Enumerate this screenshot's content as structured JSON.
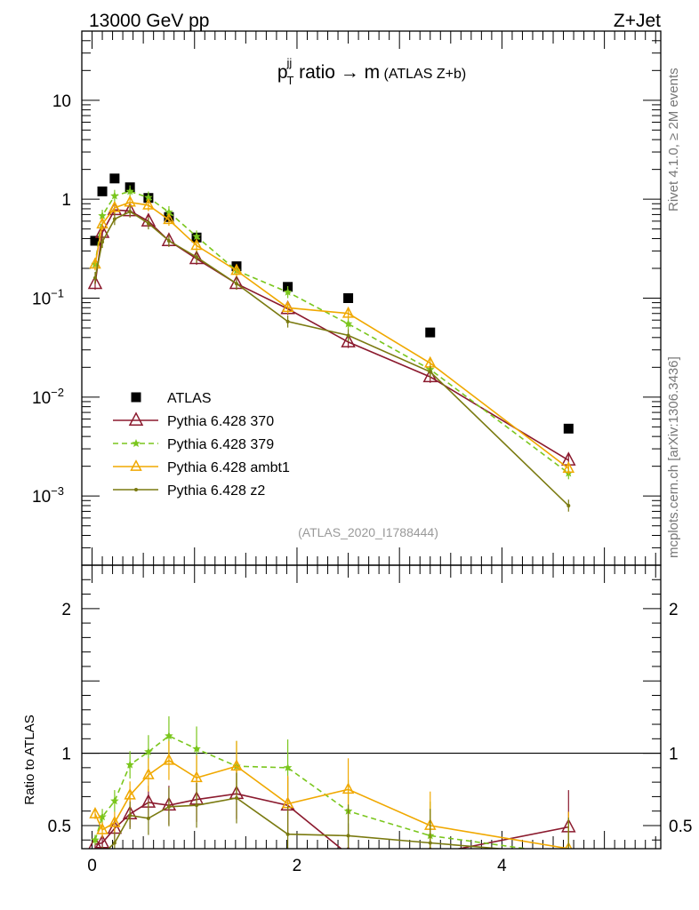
{
  "header": {
    "left": "13000 GeV pp",
    "right": "Z+Jet"
  },
  "plot_title": {
    "main": "p",
    "sup": "jj",
    "sub": "T",
    "rest": " ratio → m",
    "small": " (ATLAS Z+b)"
  },
  "side_labels": {
    "rivet": "Rivet 4.1.0, ≥ 2M events",
    "mcplots": "mcplots.cern.ch [arXiv:1306.3436]"
  },
  "analysis_id": "(ATLAS_2020_I1788444)",
  "ratio_ylabel": "Ratio to ATLAS",
  "main_axis": {
    "ytick_labels": [
      {
        "v": 10,
        "t": "10"
      },
      {
        "v": 1,
        "t": "1"
      },
      {
        "v": 0.1,
        "b": "10",
        "e": "−1"
      },
      {
        "v": 0.01,
        "b": "10",
        "e": "−2"
      },
      {
        "v": 0.001,
        "b": "10",
        "e": "−3"
      }
    ]
  },
  "ratio_axis": {
    "ytick_labels": [
      {
        "v": 2,
        "t": "2"
      },
      {
        "v": 1,
        "t": "1"
      },
      {
        "v": 0.5,
        "t": "0.5"
      }
    ]
  },
  "xaxis": {
    "tick_labels": [
      {
        "v": 0,
        "t": "0"
      },
      {
        "v": 2,
        "t": "2"
      },
      {
        "v": 4,
        "t": "4"
      }
    ]
  },
  "chart_data": [
    {
      "type": "scatter",
      "name": "main",
      "title": "p_T^jj ratio → m (ATLAS Z+b)",
      "xlim": [
        -0.1,
        5.55
      ],
      "ylim": [
        0.0002,
        50
      ],
      "yscale": "log",
      "legend_position": "lower-left",
      "series": [
        {
          "name": "ATLAS",
          "label": "ATLAS",
          "color": "#000000",
          "marker": "square",
          "x": [
            0.03,
            0.1,
            0.22,
            0.37,
            0.55,
            0.75,
            1.02,
            1.41,
            1.91,
            2.5,
            3.3,
            4.65
          ],
          "y": [
            0.38,
            1.2,
            1.62,
            1.32,
            1.03,
            0.66,
            0.41,
            0.21,
            0.13,
            0.1,
            0.045,
            0.0048
          ]
        },
        {
          "name": "Pythia 6.428 370",
          "label": "Pythia 6.428 370",
          "color": "#8b1a2e",
          "marker": "triangle-open",
          "dash": "",
          "x": [
            0.03,
            0.1,
            0.22,
            0.37,
            0.55,
            0.75,
            1.02,
            1.41,
            1.91,
            2.5,
            3.3,
            4.65
          ],
          "y": [
            0.14,
            0.46,
            0.78,
            0.76,
            0.6,
            0.38,
            0.25,
            0.14,
            0.078,
            0.036,
            0.016,
            0.0023
          ]
        },
        {
          "name": "Pythia 6.428 379",
          "label": "Pythia 6.428 379",
          "color": "#7ac61d",
          "marker": "star",
          "dash": "6,4",
          "x": [
            0.03,
            0.1,
            0.22,
            0.37,
            0.55,
            0.75,
            1.02,
            1.41,
            1.91,
            2.5,
            3.3,
            4.65
          ],
          "y": [
            0.22,
            0.68,
            1.08,
            1.2,
            1.04,
            0.74,
            0.42,
            0.19,
            0.115,
            0.055,
            0.019,
            0.0017
          ]
        },
        {
          "name": "Pythia 6.428 ambt1",
          "label": "Pythia 6.428 ambt1",
          "color": "#f0a800",
          "marker": "triangle-open-small",
          "dash": "",
          "x": [
            0.03,
            0.1,
            0.22,
            0.37,
            0.55,
            0.75,
            1.02,
            1.41,
            1.91,
            2.5,
            3.3,
            4.65
          ],
          "y": [
            0.22,
            0.56,
            0.82,
            0.93,
            0.87,
            0.62,
            0.34,
            0.19,
            0.08,
            0.07,
            0.022,
            0.0019
          ]
        },
        {
          "name": "Pythia 6.428 z2",
          "label": "Pythia 6.428 z2",
          "color": "#7a7a10",
          "marker": "dot",
          "dash": "",
          "x": [
            0.03,
            0.1,
            0.22,
            0.37,
            0.55,
            0.75,
            1.02,
            1.41,
            1.91,
            2.5,
            3.3,
            4.65
          ],
          "y": [
            0.16,
            0.37,
            0.63,
            0.75,
            0.57,
            0.38,
            0.26,
            0.14,
            0.058,
            0.042,
            0.018,
            0.0008
          ]
        }
      ]
    },
    {
      "type": "line",
      "name": "ratio",
      "ylabel": "Ratio to ATLAS",
      "xlim": [
        -0.1,
        5.55
      ],
      "ylim": [
        0.34,
        2.3
      ],
      "series": [
        {
          "name": "Pythia 6.428 370",
          "color": "#8b1a2e",
          "dash": "",
          "x": [
            0.03,
            0.1,
            0.22,
            0.37,
            0.55,
            0.75,
            1.02,
            1.41,
            1.91,
            2.5,
            3.3,
            4.65
          ],
          "y": [
            0.37,
            0.38,
            0.48,
            0.58,
            0.66,
            0.64,
            0.68,
            0.72,
            0.64,
            0.3,
            0.3,
            0.49
          ]
        },
        {
          "name": "Pythia 6.428 379",
          "color": "#7ac61d",
          "dash": "6,4",
          "x": [
            0.03,
            0.1,
            0.22,
            0.37,
            0.55,
            0.75,
            1.02,
            1.41,
            1.91,
            2.5,
            3.3,
            4.65
          ],
          "y": [
            0.4,
            0.56,
            0.67,
            0.92,
            1.01,
            1.12,
            1.03,
            0.91,
            0.9,
            0.6,
            0.43,
            0.3
          ]
        },
        {
          "name": "Pythia 6.428 ambt1",
          "color": "#f0a800",
          "dash": "",
          "x": [
            0.03,
            0.1,
            0.22,
            0.37,
            0.55,
            0.75,
            1.02,
            1.41,
            1.91,
            2.5,
            3.3,
            4.65
          ],
          "y": [
            0.58,
            0.47,
            0.52,
            0.71,
            0.85,
            0.95,
            0.83,
            0.91,
            0.65,
            0.75,
            0.5,
            0.34
          ]
        },
        {
          "name": "Pythia 6.428 z2",
          "color": "#7a7a10",
          "dash": "",
          "x": [
            0.03,
            0.1,
            0.22,
            0.37,
            0.55,
            0.75,
            1.02,
            1.41,
            1.91,
            2.5,
            3.3,
            4.65
          ],
          "y": [
            0.3,
            0.3,
            0.38,
            0.57,
            0.55,
            0.63,
            0.64,
            0.69,
            0.44,
            0.43,
            0.38,
            0.3
          ]
        }
      ]
    }
  ]
}
